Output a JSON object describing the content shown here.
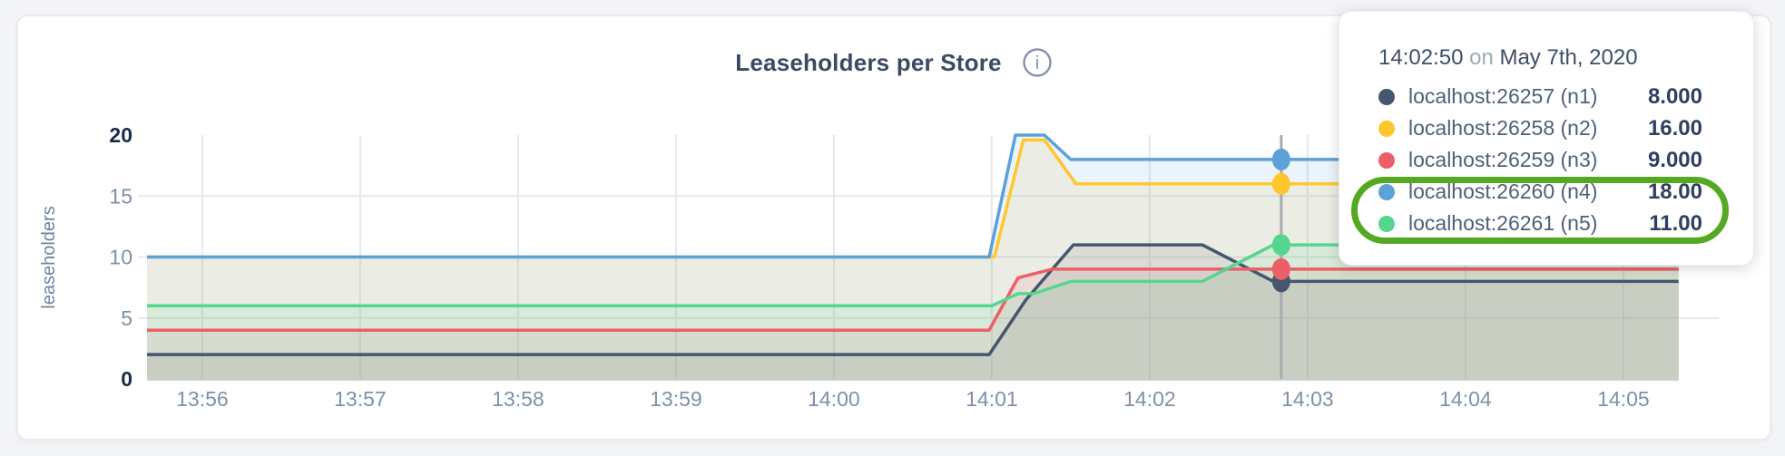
{
  "header": {
    "title": "Leaseholders per Store",
    "info_icon": "i",
    "info_icon_color": "#8593ae"
  },
  "chart_data": {
    "type": "area",
    "title": "Leaseholders per Store",
    "xlabel": "",
    "ylabel": "leaseholders",
    "ylim": [
      0,
      20
    ],
    "y_ticks": [
      0,
      5,
      10,
      15,
      20
    ],
    "y_ticks_bold": [
      0,
      20
    ],
    "grid": true,
    "x_tick_labels": [
      "13:56",
      "13:57",
      "13:58",
      "13:59",
      "14:00",
      "14:01",
      "14:02",
      "14:03",
      "14:04",
      "14:05"
    ],
    "x_tick_seconds": [
      21,
      81,
      141,
      201,
      261,
      321,
      381,
      441,
      501,
      561
    ],
    "time_domain_seconds": [
      0,
      582
    ],
    "hover_time_seconds": 431,
    "series": [
      {
        "name": "localhost:26257 (n1)",
        "color": "#46566f",
        "hover_value": 8,
        "points": [
          [
            0,
            2
          ],
          [
            320,
            2
          ],
          [
            334,
            6.5
          ],
          [
            352,
            11
          ],
          [
            401,
            11
          ],
          [
            428,
            8
          ],
          [
            582,
            8
          ]
        ]
      },
      {
        "name": "localhost:26258 (n2)",
        "color": "#ffc72e",
        "hover_value": 16,
        "points": [
          [
            0,
            10
          ],
          [
            322,
            10
          ],
          [
            333,
            19.6
          ],
          [
            341,
            19.6
          ],
          [
            353,
            16
          ],
          [
            582,
            16
          ]
        ]
      },
      {
        "name": "localhost:26259 (n3)",
        "color": "#ed5f67",
        "hover_value": 9,
        "points": [
          [
            0,
            4
          ],
          [
            320,
            4
          ],
          [
            331,
            8.3
          ],
          [
            344,
            9
          ],
          [
            582,
            9
          ]
        ]
      },
      {
        "name": "localhost:26260 (n4)",
        "color": "#5ca1d7",
        "hover_value": 18,
        "points": [
          [
            0,
            10
          ],
          [
            320,
            10
          ],
          [
            330,
            20
          ],
          [
            341,
            20
          ],
          [
            351,
            18
          ],
          [
            582,
            18
          ]
        ]
      },
      {
        "name": "localhost:26261 (n5)",
        "color": "#55d68f",
        "hover_value": 11,
        "points": [
          [
            0,
            6
          ],
          [
            321,
            6
          ],
          [
            331,
            7
          ],
          [
            337,
            7
          ],
          [
            351,
            8
          ],
          [
            401,
            8
          ],
          [
            428,
            11
          ],
          [
            582,
            11
          ]
        ]
      }
    ],
    "legend_position": "tooltip"
  },
  "tooltip": {
    "time": "14:02:50",
    "connector": "on",
    "date": "May 7th, 2020",
    "rows": [
      {
        "label": "localhost:26257 (n1)",
        "value": "8.000",
        "color": "#46566f"
      },
      {
        "label": "localhost:26258 (n2)",
        "value": "16.00",
        "color": "#ffc72e"
      },
      {
        "label": "localhost:26259 (n3)",
        "value": "9.000",
        "color": "#ed5f67"
      },
      {
        "label": "localhost:26260 (n4)",
        "value": "18.00",
        "color": "#5ca1d7"
      },
      {
        "label": "localhost:26261 (n5)",
        "value": "11.00",
        "color": "#55d68f"
      }
    ]
  },
  "annotation": {
    "shape": "rounded-ellipse",
    "color": "#54a822",
    "stroke_width": 7,
    "highlight_row_indexes": [
      3,
      4
    ]
  },
  "colors": {
    "page_background": "#f3f4f8",
    "grid_line": "#e4e8ee",
    "hover_line": "#a8abb0",
    "axis_tick_label": "#7e90a8",
    "axis_tick_label_bold": "#1c2b4a",
    "axis_title": "#6e82a2",
    "title_text": "#3a4a63"
  }
}
